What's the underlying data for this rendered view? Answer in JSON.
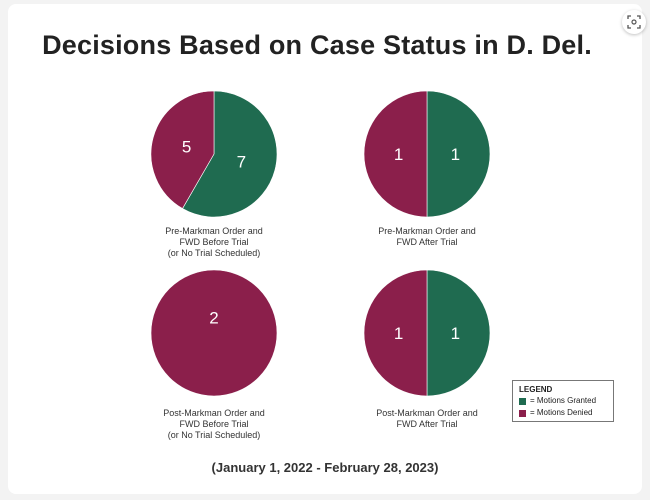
{
  "title": "Decisions Based on Case Status in D. Del.",
  "date_range": "(January 1, 2022 - February 28, 2023)",
  "colors": {
    "granted": "#1f6b50",
    "denied": "#8b1f4b"
  },
  "legend": {
    "title": "LEGEND",
    "items": [
      {
        "label": "= Motions Granted",
        "color": "#1f6b50"
      },
      {
        "label": "= Motions Denied",
        "color": "#8b1f4b"
      }
    ]
  },
  "chart_data": [
    {
      "type": "pie",
      "caption": "Pre-Markman Order and\nFWD Before Trial\n(or No Trial Scheduled)",
      "slices": [
        {
          "label": "Motions Granted",
          "value": 7
        },
        {
          "label": "Motions Denied",
          "value": 5
        }
      ]
    },
    {
      "type": "pie",
      "caption": "Pre-Markman Order and\nFWD After Trial",
      "slices": [
        {
          "label": "Motions Granted",
          "value": 1
        },
        {
          "label": "Motions Denied",
          "value": 1
        }
      ]
    },
    {
      "type": "pie",
      "caption": "Post-Markman Order and\nFWD Before Trial\n(or No Trial Scheduled)",
      "slices": [
        {
          "label": "Motions Granted",
          "value": 0
        },
        {
          "label": "Motions Denied",
          "value": 2
        }
      ]
    },
    {
      "type": "pie",
      "caption": "Post-Markman Order and\nFWD After Trial",
      "slices": [
        {
          "label": "Motions Granted",
          "value": 1
        },
        {
          "label": "Motions Denied",
          "value": 1
        }
      ]
    }
  ]
}
